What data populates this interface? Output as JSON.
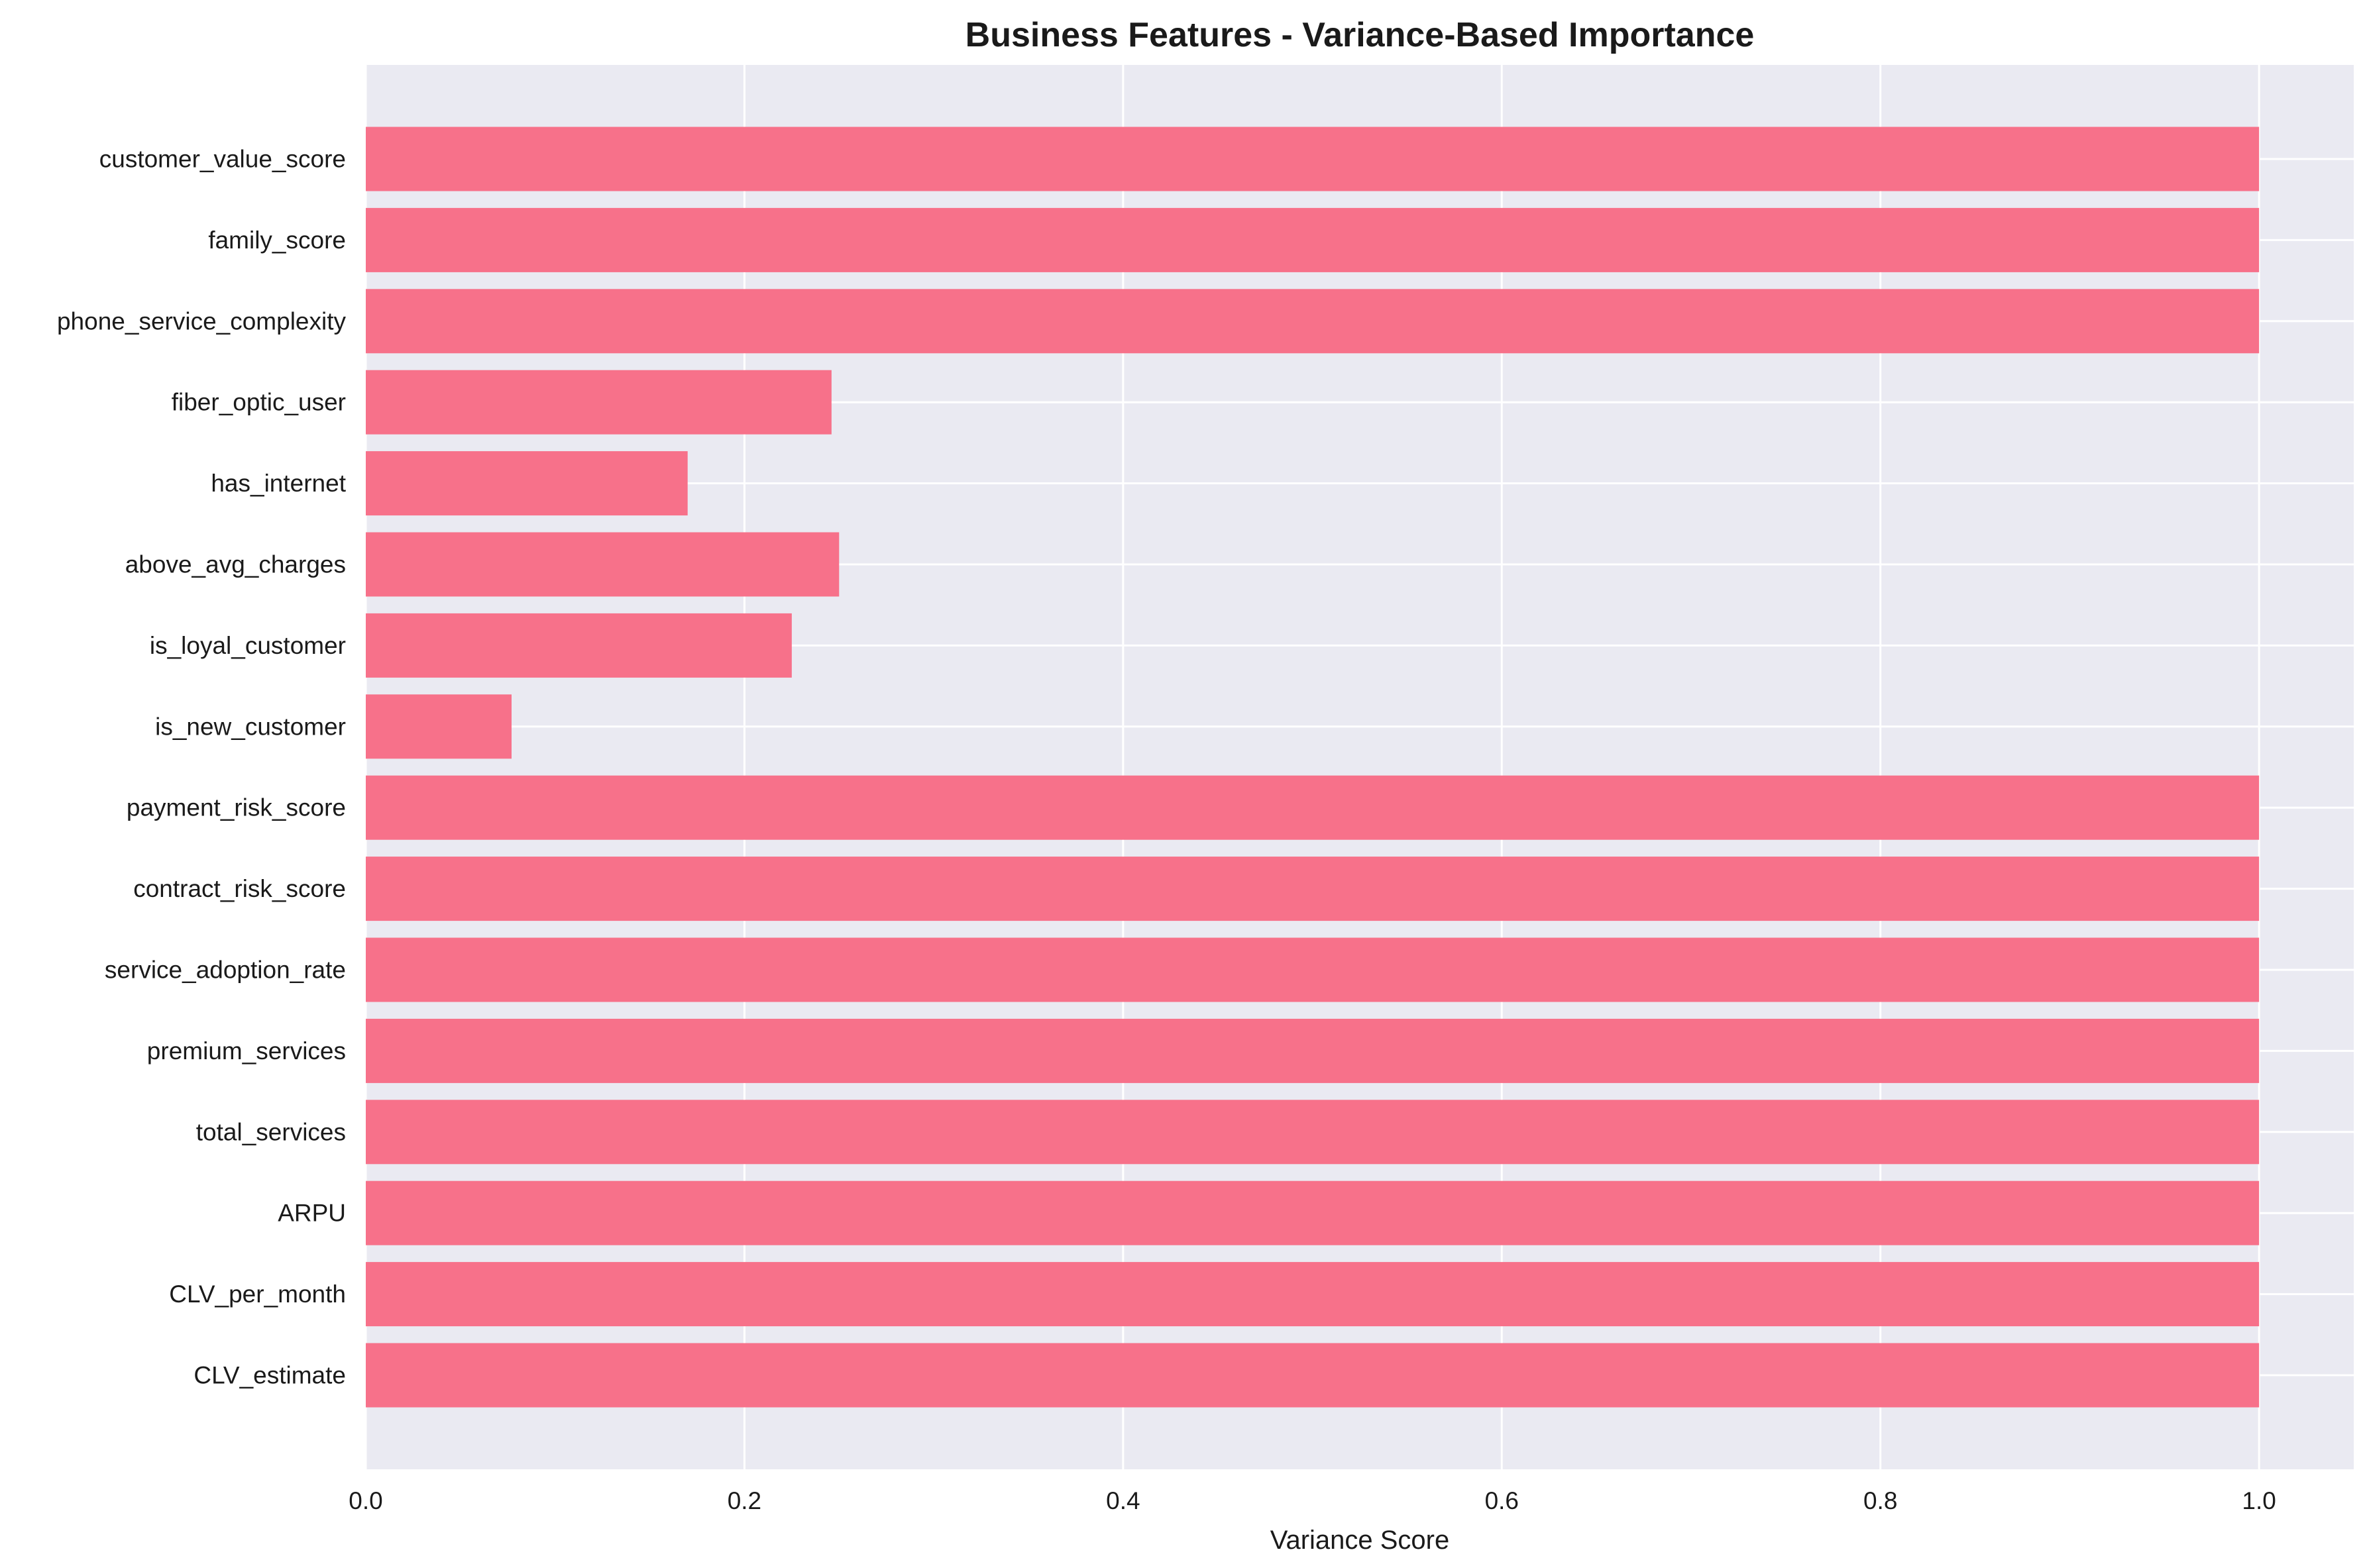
{
  "chart_data": {
    "type": "bar",
    "orientation": "horizontal",
    "title": "Business Features - Variance-Based Importance",
    "xlabel": "Variance Score",
    "ylabel": "",
    "xlim": [
      0,
      1.05
    ],
    "xticks": [
      0.0,
      0.2,
      0.4,
      0.6,
      0.8,
      1.0
    ],
    "xtick_labels": [
      "0.0",
      "0.2",
      "0.4",
      "0.6",
      "0.8",
      "1.0"
    ],
    "grid": true,
    "bar_color": "#f7718a",
    "background_color": "#eaeaf2",
    "grid_color": "#ffffff",
    "categories": [
      "CLV_estimate",
      "CLV_per_month",
      "ARPU",
      "total_services",
      "premium_services",
      "service_adoption_rate",
      "contract_risk_score",
      "payment_risk_score",
      "is_new_customer",
      "is_loyal_customer",
      "above_avg_charges",
      "has_internet",
      "fiber_optic_user",
      "phone_service_complexity",
      "family_score",
      "customer_value_score"
    ],
    "values": [
      1.0,
      1.0,
      1.0,
      1.0,
      1.0,
      1.0,
      1.0,
      1.0,
      0.077,
      0.225,
      0.25,
      0.17,
      0.246,
      1.0,
      1.0,
      1.0
    ]
  }
}
